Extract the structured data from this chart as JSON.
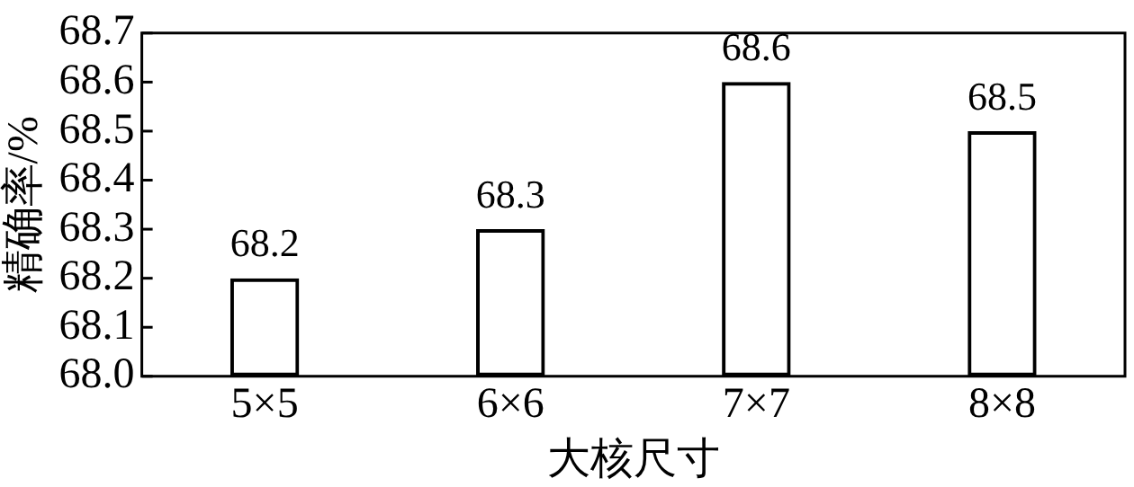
{
  "chart_data": {
    "type": "bar",
    "xlabel": "大核尺寸",
    "ylabel": "精确率/%",
    "categories": [
      "5×5",
      "6×6",
      "7×7",
      "8×8"
    ],
    "values": [
      68.2,
      68.3,
      68.6,
      68.5
    ],
    "color": "#000000",
    "ylim": [
      68.0,
      68.7
    ],
    "yticks": [
      {
        "value": 68.0,
        "label": "68.0"
      },
      68.1,
      68.2,
      68.3,
      68.4,
      68.5,
      68.6,
      68.7
    ],
    "data_labels": true,
    "grid": false,
    "legend": false
  }
}
